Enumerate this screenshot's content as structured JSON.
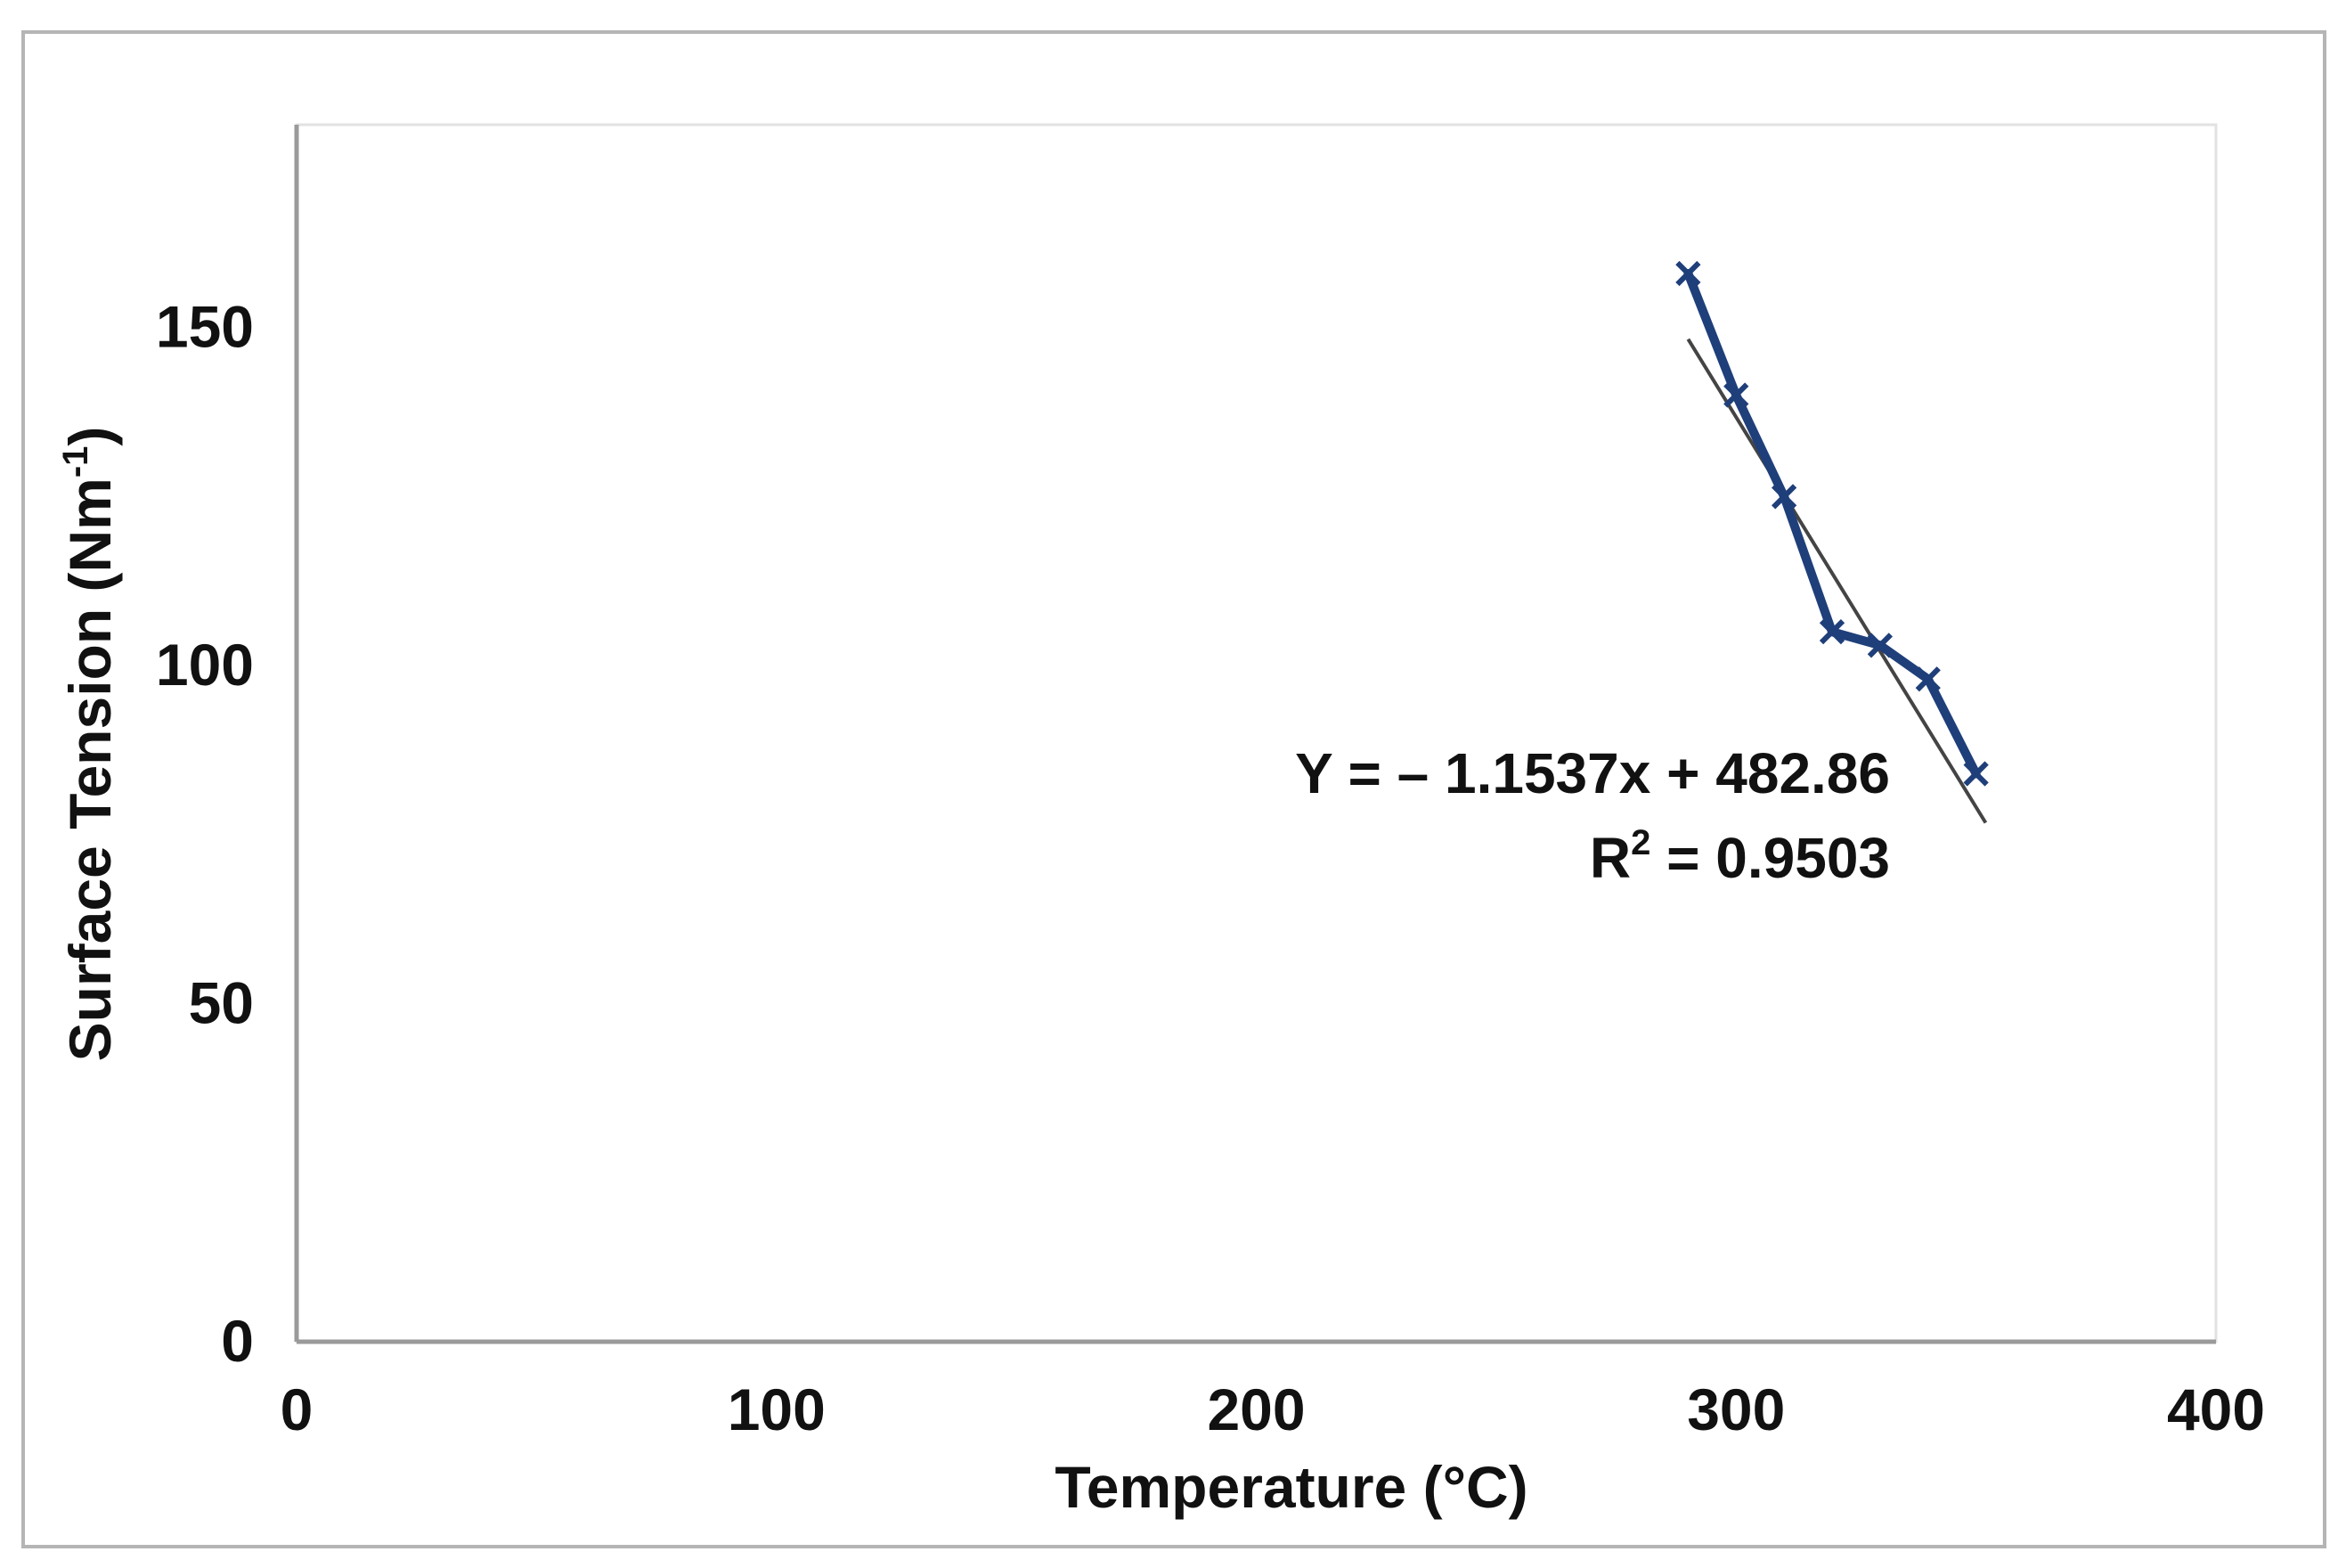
{
  "chart_data": {
    "type": "line",
    "title": "",
    "xlabel": "Temperature (°C)",
    "ylabel": {
      "main": "Surface Tension (Nm",
      "sup": "-1",
      "close": ")"
    },
    "xlim": [
      0,
      400
    ],
    "ylim": [
      0,
      180
    ],
    "x_ticks": [
      0,
      100,
      200,
      300,
      400
    ],
    "y_ticks": [
      0,
      50,
      100,
      150
    ],
    "grid": false,
    "legend": "none",
    "series": [
      {
        "x": [
          290,
          300,
          310,
          320,
          330,
          340,
          350
        ],
        "y": [
          158,
          140,
          125,
          105,
          103,
          98,
          84
        ],
        "color": "#1f3f7a",
        "marker": "x"
      }
    ],
    "trendline": {
      "slope": -1.1537,
      "intercept": 482.86,
      "x_range": [
        290,
        352
      ],
      "color": "#444444"
    },
    "annotations": {
      "equation": "Y = – 1.1537x + 482.86",
      "r2_prefix": "R",
      "r2_sup": "2",
      "r2_rest": " = 0.9503"
    }
  }
}
